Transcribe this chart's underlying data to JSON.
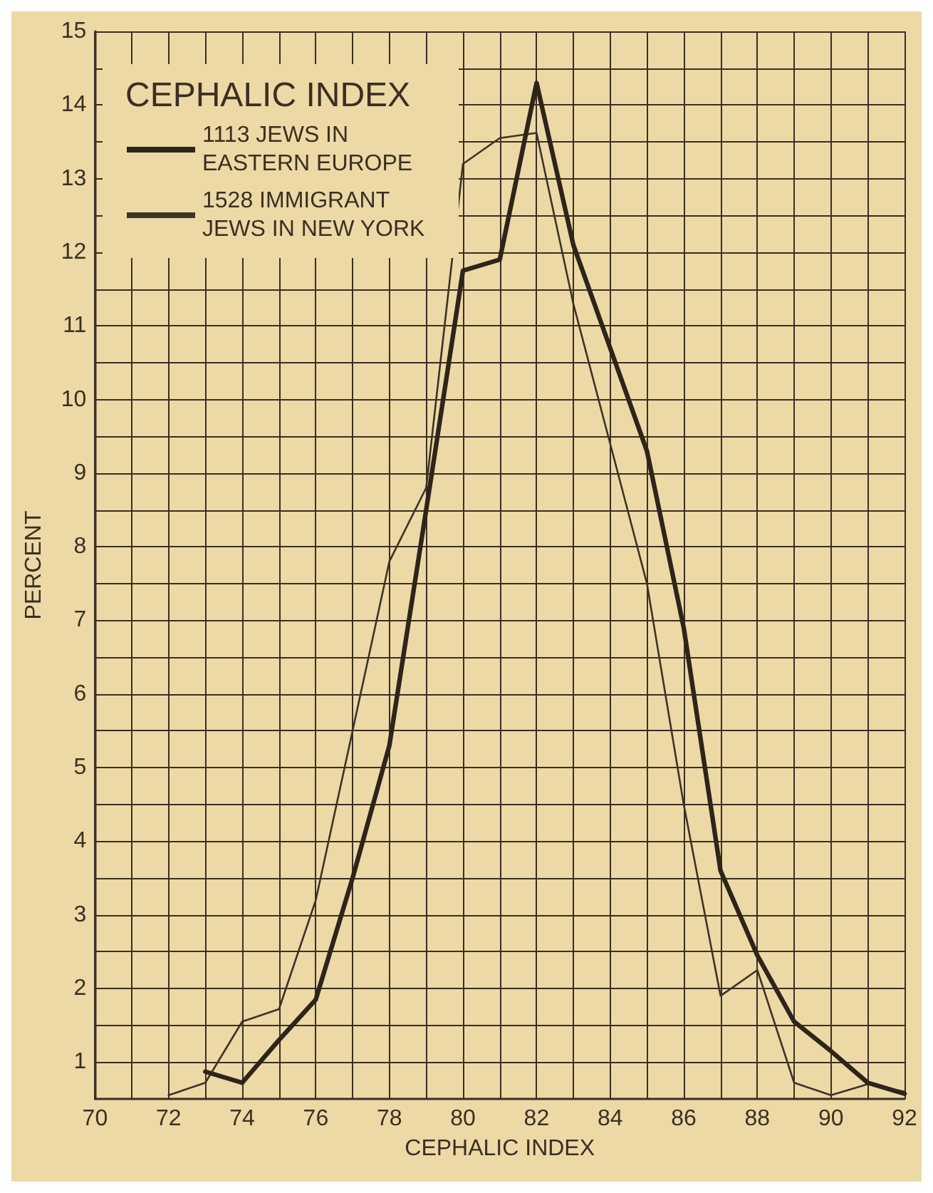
{
  "chart_data": {
    "type": "line",
    "xlabel": "CEPHALIC INDEX",
    "ylabel": "PERCENT",
    "legend_title": "CEPHALIC INDEX",
    "x": [
      72,
      73,
      74,
      75,
      76,
      77,
      78,
      79,
      80,
      81,
      82,
      83,
      84,
      85,
      86,
      87,
      88,
      89,
      90,
      91,
      92
    ],
    "series": [
      {
        "name": "1113 JEWS IN EASTERN EUROPE",
        "color": "#2e2419",
        "values": [
          null,
          0.87,
          0.72,
          1.3,
          1.85,
          3.5,
          5.3,
          8.5,
          11.75,
          11.9,
          14.3,
          12.1,
          10.7,
          9.3,
          6.9,
          3.6,
          2.45,
          1.55,
          1.15,
          0.72,
          0.57
        ]
      },
      {
        "name": "1528 IMMIGRANT JEWS IN NEW YORK",
        "color": "#3d3326",
        "values": [
          0.55,
          0.72,
          1.55,
          1.72,
          3.2,
          5.5,
          7.8,
          8.8,
          13.2,
          13.55,
          13.62,
          11.3,
          9.4,
          7.5,
          4.5,
          1.9,
          2.25,
          0.72,
          0.55,
          0.7,
          0.6
        ]
      }
    ],
    "xlim": [
      70,
      92
    ],
    "xticks": [
      70,
      {
        "value": 71,
        "label": null
      },
      72,
      {
        "value": 73,
        "label": null
      },
      74,
      {
        "value": 75,
        "label": null
      },
      76,
      {
        "value": 77,
        "label": null
      },
      78,
      {
        "value": 79,
        "label": null
      },
      80,
      {
        "value": 81,
        "label": null
      },
      82,
      {
        "value": 83,
        "label": null
      },
      84,
      {
        "value": 85,
        "label": null
      },
      86,
      {
        "value": 87,
        "label": null
      },
      88,
      {
        "value": 89,
        "label": null
      },
      90,
      {
        "value": 91,
        "label": null
      },
      92
    ],
    "ylim": [
      0.5,
      15
    ],
    "yticks": [
      1,
      {
        "value": 1.5,
        "label": null
      },
      2,
      {
        "value": 2.5,
        "label": null
      },
      3,
      {
        "value": 3.5,
        "label": null
      },
      4,
      {
        "value": 4.5,
        "label": null
      },
      5,
      {
        "value": 5.5,
        "label": null
      },
      6,
      {
        "value": 6.5,
        "label": null
      },
      7,
      {
        "value": 7.5,
        "label": null
      },
      8,
      {
        "value": 8.5,
        "label": null
      },
      9,
      {
        "value": 9.5,
        "label": null
      },
      10,
      {
        "value": 10.5,
        "label": null
      },
      11,
      {
        "value": 11.5,
        "label": null
      },
      12,
      {
        "value": 12.5,
        "label": null
      },
      13,
      {
        "value": 13.5,
        "label": null
      },
      14,
      {
        "value": 14.5,
        "label": null
      },
      15
    ],
    "grid": true,
    "legend": "top left",
    "marker": "none",
    "line_style": "solid"
  }
}
